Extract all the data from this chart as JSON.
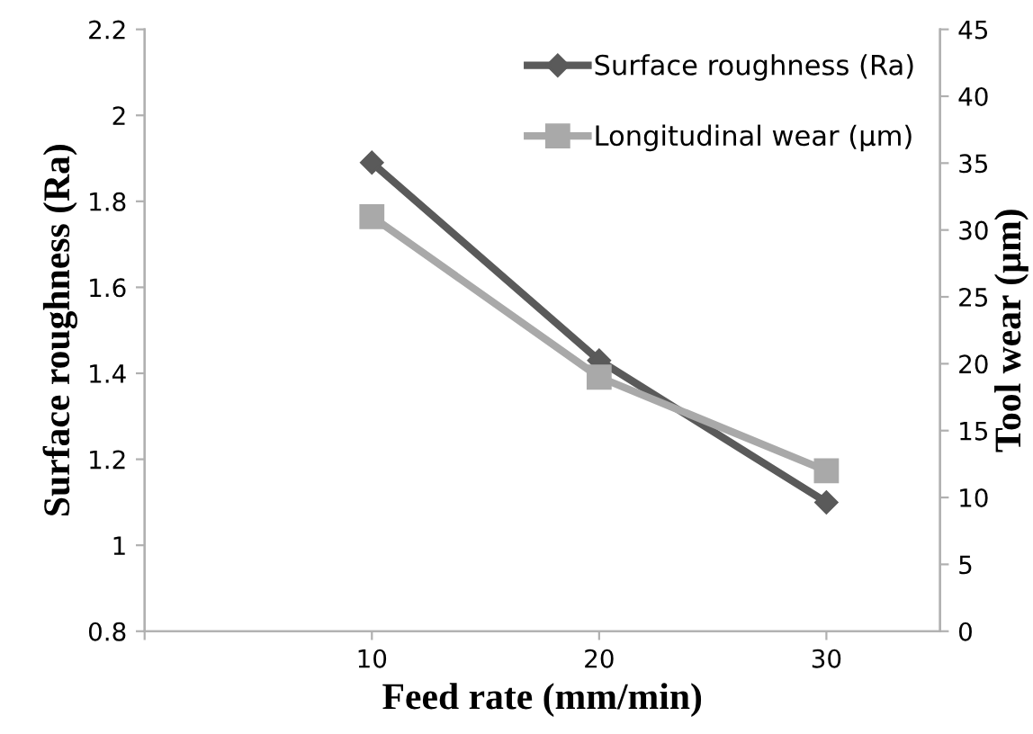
{
  "chart_data": {
    "type": "line",
    "xlabel": "Feed rate (mm/min)",
    "ylabel": "Surface roughness (Ra)",
    "y2label": "Tool wear (µm)",
    "x": [
      10,
      20,
      30
    ],
    "series": [
      {
        "name": "Surface roughness (Ra)",
        "color": "#5a5a5a",
        "values": [
          1.89,
          1.43,
          1.1
        ],
        "marker": "diamond"
      },
      {
        "name": "Longitudinal wear (µm)",
        "color": "#a9a9a9",
        "values": [
          31,
          19,
          12
        ],
        "axis": "y2",
        "marker": "square"
      }
    ],
    "xlim": [
      0,
      35
    ],
    "xticks": [
      {
        "value": 0,
        "label": null
      },
      10,
      20,
      30
    ],
    "ylim": [
      0.8,
      2.2
    ],
    "yticks": [
      0.8,
      1,
      1.2,
      1.4,
      1.6,
      1.8,
      2,
      2.2
    ],
    "y2lim": [
      0,
      45
    ],
    "y2ticks": [
      0,
      5,
      10,
      15,
      20,
      25,
      30,
      35,
      40,
      45
    ],
    "legend": "top right",
    "grid": false,
    "line_style": "solid"
  }
}
